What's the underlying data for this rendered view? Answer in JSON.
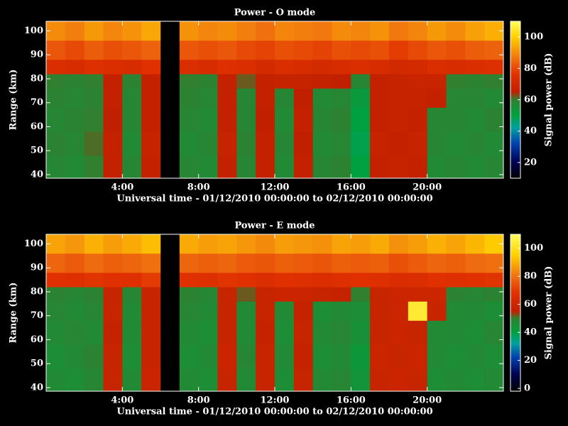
{
  "chart_data": [
    {
      "type": "heatmap",
      "title": "Power - O mode",
      "xlabel": "Universal time - 01/12/2010 00:00:00 to 02/12/2010 00:00:00",
      "ylabel": "Range (km)",
      "colorbar_label": "Signal power (dB)",
      "x_bins": [
        0,
        1,
        2,
        3,
        4,
        5,
        6,
        7,
        8,
        9,
        10,
        11,
        12,
        13,
        14,
        15,
        16,
        17,
        18,
        19,
        20,
        21,
        22,
        23,
        24
      ],
      "y_bins": [
        38.5,
        48,
        58,
        68,
        76,
        82,
        88,
        96,
        104
      ],
      "values": [
        [
          58,
          57,
          60,
          66,
          58,
          66,
          null,
          58,
          57,
          66,
          58,
          66,
          57,
          66,
          58,
          59,
          50,
          66,
          67,
          66,
          57,
          58,
          57,
          58
        ],
        [
          59,
          58,
          61,
          66,
          57,
          67,
          null,
          57,
          58,
          67,
          59,
          66,
          58,
          65,
          57,
          58,
          49,
          67,
          66,
          67,
          58,
          57,
          58,
          57
        ],
        [
          58,
          59,
          60,
          65,
          58,
          66,
          null,
          58,
          57,
          66,
          58,
          65,
          57,
          66,
          58,
          59,
          50,
          66,
          67,
          66,
          58,
          58,
          57,
          59
        ],
        [
          59,
          58,
          59,
          66,
          58,
          66,
          null,
          59,
          58,
          66,
          58,
          66,
          58,
          65,
          57,
          58,
          52,
          66,
          67,
          67,
          66,
          58,
          58,
          57
        ],
        [
          60,
          59,
          60,
          66,
          59,
          66,
          null,
          60,
          59,
          66,
          62,
          66,
          67,
          67,
          66,
          65,
          58,
          66,
          67,
          68,
          68,
          60,
          59,
          60
        ],
        [
          74,
          73,
          75,
          74,
          73,
          76,
          null,
          74,
          73,
          75,
          74,
          72,
          74,
          73,
          72,
          73,
          74,
          73,
          71,
          72,
          74,
          73,
          74,
          75
        ],
        [
          82,
          80,
          83,
          81,
          82,
          84,
          null,
          82,
          81,
          82,
          80,
          79,
          81,
          80,
          79,
          81,
          80,
          81,
          78,
          80,
          82,
          81,
          83,
          84
        ],
        [
          90,
          88,
          92,
          89,
          91,
          94,
          null,
          91,
          89,
          90,
          88,
          86,
          89,
          88,
          87,
          90,
          89,
          91,
          87,
          89,
          92,
          90,
          93,
          95
        ]
      ],
      "xlim": [
        0,
        24
      ],
      "xticks": [
        {
          "value": 4,
          "label": "4:00"
        },
        {
          "value": 8,
          "label": "8:00"
        },
        {
          "value": 12,
          "label": "12:00"
        },
        {
          "value": 16,
          "label": "16:00"
        },
        {
          "value": 20,
          "label": "20:00"
        }
      ],
      "ylim": [
        38.5,
        104
      ],
      "yticks": [
        40,
        50,
        60,
        70,
        80,
        90,
        100
      ],
      "clim": [
        10,
        110
      ],
      "cticks": [
        20,
        40,
        60,
        80,
        100
      ],
      "colorscale": [
        [
          10,
          "#000000"
        ],
        [
          20,
          "#000050"
        ],
        [
          32,
          "#0040b0"
        ],
        [
          42,
          "#00a0a0"
        ],
        [
          50,
          "#00a040"
        ],
        [
          60,
          "#308030"
        ],
        [
          65,
          "#c02000"
        ],
        [
          76,
          "#e03000"
        ],
        [
          86,
          "#f07010"
        ],
        [
          100,
          "#ffd000"
        ],
        [
          110,
          "#ffff60"
        ]
      ]
    },
    {
      "type": "heatmap",
      "title": "Power - E mode",
      "xlabel": "Universal time - 01/12/2010 00:00:00 to 02/12/2010 00:00:00",
      "ylabel": "Range (km)",
      "colorbar_label": "Signal power (dB)",
      "x_bins": [
        0,
        1,
        2,
        3,
        4,
        5,
        6,
        7,
        8,
        9,
        10,
        11,
        12,
        13,
        14,
        15,
        16,
        17,
        18,
        19,
        20,
        21,
        22,
        23,
        24
      ],
      "y_bins": [
        38.5,
        48,
        58,
        68,
        76,
        82,
        88,
        96,
        104
      ],
      "values": [
        [
          47,
          46,
          48,
          58,
          47,
          59,
          null,
          47,
          46,
          58,
          47,
          58,
          46,
          58,
          47,
          48,
          44,
          58,
          59,
          58,
          46,
          47,
          46,
          47
        ],
        [
          46,
          47,
          49,
          58,
          46,
          58,
          null,
          46,
          47,
          59,
          48,
          58,
          47,
          57,
          46,
          47,
          43,
          59,
          58,
          59,
          47,
          46,
          47,
          46
        ],
        [
          47,
          48,
          47,
          57,
          47,
          58,
          null,
          47,
          46,
          58,
          47,
          57,
          46,
          58,
          47,
          48,
          45,
          58,
          59,
          58,
          47,
          47,
          46,
          48
        ],
        [
          48,
          47,
          48,
          58,
          47,
          58,
          null,
          48,
          47,
          58,
          47,
          58,
          47,
          57,
          46,
          47,
          46,
          58,
          59,
          103,
          58,
          47,
          47,
          46
        ],
        [
          49,
          48,
          49,
          58,
          48,
          58,
          null,
          49,
          48,
          58,
          52,
          58,
          59,
          59,
          58,
          57,
          50,
          58,
          59,
          60,
          60,
          49,
          48,
          49
        ],
        [
          68,
          67,
          69,
          68,
          67,
          70,
          null,
          68,
          67,
          69,
          68,
          66,
          68,
          67,
          66,
          67,
          68,
          67,
          65,
          66,
          68,
          67,
          68,
          69
        ],
        [
          78,
          76,
          79,
          77,
          78,
          80,
          null,
          78,
          77,
          78,
          76,
          75,
          77,
          76,
          75,
          77,
          76,
          77,
          74,
          76,
          78,
          77,
          79,
          80
        ],
        [
          88,
          86,
          90,
          87,
          89,
          92,
          null,
          89,
          87,
          88,
          86,
          84,
          87,
          86,
          85,
          88,
          87,
          89,
          85,
          87,
          90,
          88,
          91,
          94
        ]
      ],
      "xlim": [
        0,
        24
      ],
      "xticks": [
        {
          "value": 4,
          "label": "4:00"
        },
        {
          "value": 8,
          "label": "8:00"
        },
        {
          "value": 12,
          "label": "12:00"
        },
        {
          "value": 16,
          "label": "16:00"
        },
        {
          "value": 20,
          "label": "20:00"
        }
      ],
      "ylim": [
        38.5,
        104
      ],
      "yticks": [
        40,
        50,
        60,
        70,
        80,
        90,
        100
      ],
      "clim": [
        -2,
        110
      ],
      "cticks": [
        0,
        20,
        40,
        60,
        80,
        100
      ],
      "colorscale": [
        [
          -2,
          "#000000"
        ],
        [
          10,
          "#000050"
        ],
        [
          22,
          "#0040b0"
        ],
        [
          32,
          "#00a0a0"
        ],
        [
          40,
          "#00a040"
        ],
        [
          50,
          "#308030"
        ],
        [
          55,
          "#c02000"
        ],
        [
          68,
          "#e03000"
        ],
        [
          80,
          "#f07010"
        ],
        [
          95,
          "#ffd000"
        ],
        [
          110,
          "#ffff60"
        ]
      ]
    }
  ]
}
